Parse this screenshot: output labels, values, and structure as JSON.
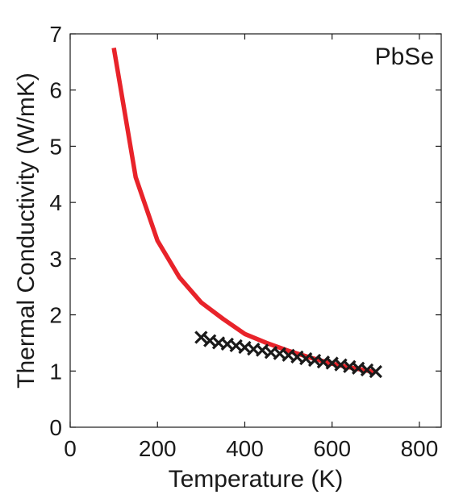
{
  "chart_data": {
    "type": "line",
    "panel_label": "PbSe",
    "xlabel": "Temperature (K)",
    "ylabel": "Thermal Conductivity (W/mK)",
    "xlim": [
      0,
      850
    ],
    "ylim": [
      0,
      7
    ],
    "x_ticks": [
      "0",
      "200",
      "400",
      "600",
      "800"
    ],
    "y_ticks": [
      "0",
      "1",
      "2",
      "3",
      "4",
      "5",
      "6",
      "7"
    ],
    "grid": false,
    "legend": "none",
    "series": [
      {
        "style": "line",
        "color": "#e8232a",
        "x": [
          100,
          150,
          200,
          250,
          300,
          350,
          400,
          450,
          500,
          550,
          600,
          650,
          700
        ],
        "y": [
          6.75,
          4.45,
          3.32,
          2.67,
          2.22,
          1.93,
          1.66,
          1.5,
          1.36,
          1.24,
          1.13,
          1.05,
          0.98
        ]
      },
      {
        "style": "markers",
        "marker": "x",
        "color": "#1a1a1a",
        "x": [
          300,
          320,
          340,
          360,
          380,
          400,
          420,
          440,
          460,
          480,
          500,
          520,
          540,
          560,
          580,
          600,
          620,
          640,
          660,
          680,
          700
        ],
        "y": [
          1.6,
          1.54,
          1.5,
          1.48,
          1.45,
          1.42,
          1.39,
          1.37,
          1.33,
          1.31,
          1.28,
          1.25,
          1.22,
          1.19,
          1.16,
          1.14,
          1.11,
          1.08,
          1.05,
          1.02,
          0.99
        ]
      }
    ]
  }
}
